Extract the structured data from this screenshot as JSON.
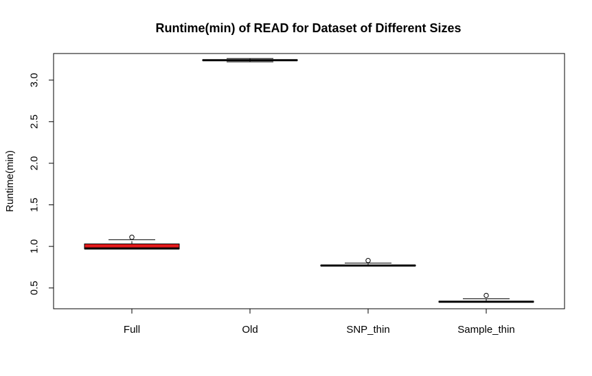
{
  "chart_data": {
    "type": "boxplot",
    "title": "Runtime(min) of READ for Dataset of Different Sizes",
    "xlabel": "",
    "ylabel": "Runtime(min)",
    "yticks": [
      "0.5",
      "1.0",
      "1.5",
      "2.0",
      "2.5",
      "3.0"
    ],
    "ylim": [
      0.25,
      3.32
    ],
    "grid": false,
    "categories": [
      "Full",
      "Old",
      "SNP_thin",
      "Sample_thin"
    ],
    "boxes": [
      {
        "category": "Full",
        "min": 0.97,
        "q1": 0.97,
        "median": 0.975,
        "q3": 1.03,
        "max": 1.08,
        "outliers": [
          1.11
        ],
        "fill": "#e31a1c"
      },
      {
        "category": "Old",
        "min": 3.22,
        "q1": 3.235,
        "median": 3.24,
        "q3": 3.245,
        "max": 3.26,
        "outliers": [],
        "fill": "#ffffff"
      },
      {
        "category": "SNP_thin",
        "min": 0.765,
        "q1": 0.765,
        "median": 0.77,
        "q3": 0.775,
        "max": 0.8,
        "outliers": [
          0.83
        ],
        "fill": "#ffffff"
      },
      {
        "category": "Sample_thin",
        "min": 0.33,
        "q1": 0.33,
        "median": 0.335,
        "q3": 0.34,
        "max": 0.37,
        "outliers": [
          0.41
        ],
        "fill": "#ffffff"
      }
    ]
  }
}
